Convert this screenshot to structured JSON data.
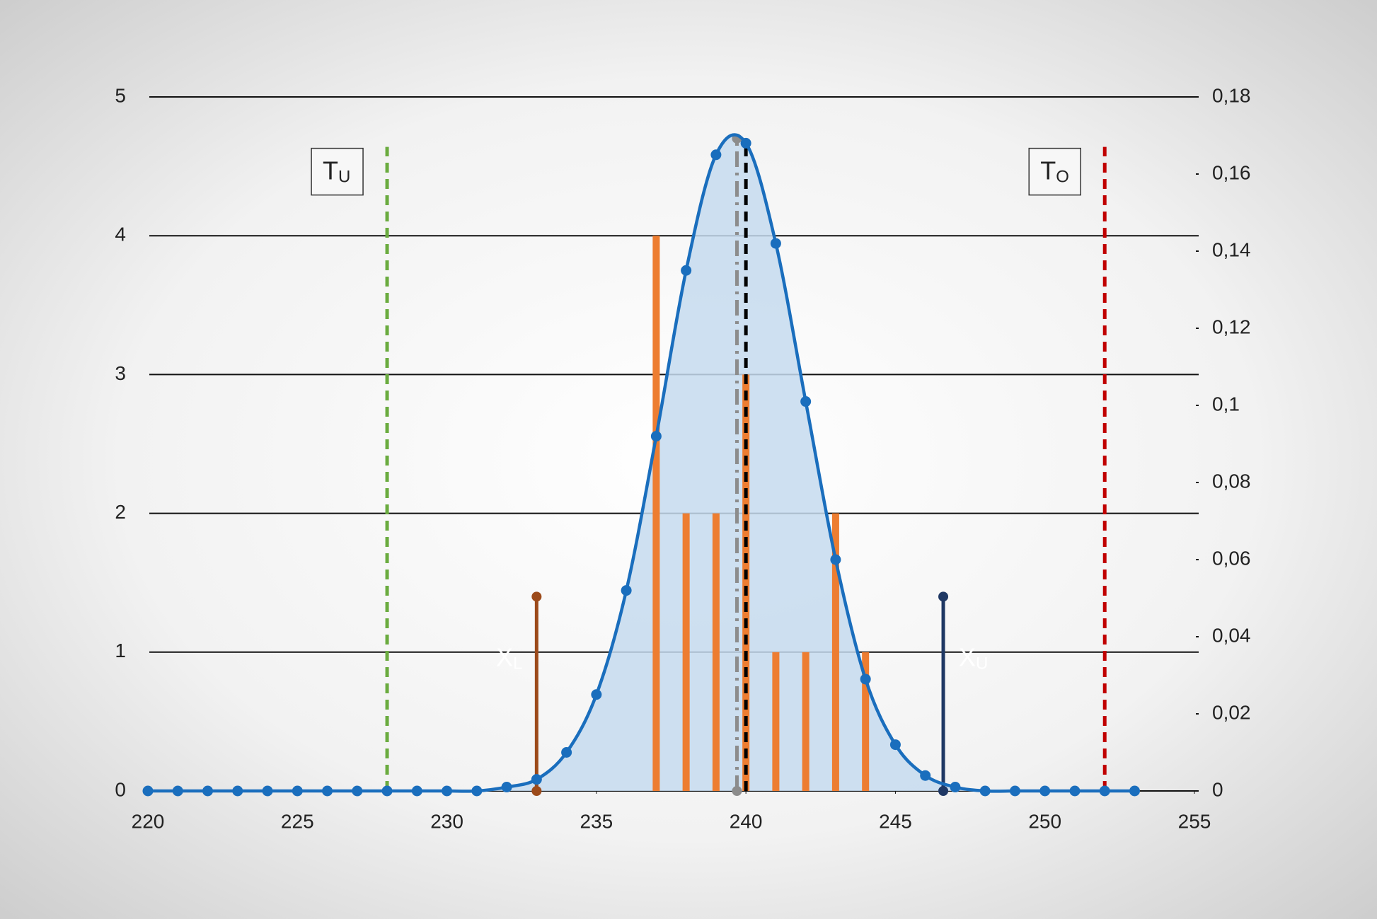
{
  "chart_data": {
    "type": "bar",
    "xlim": [
      220,
      255
    ],
    "xticks": [
      220,
      225,
      230,
      235,
      240,
      245,
      250,
      255
    ],
    "ylim": [
      0,
      5
    ],
    "yticks": [
      0,
      1,
      2,
      3,
      4,
      5
    ],
    "y2lim": [
      0,
      0.18
    ],
    "y2ticks": [
      0,
      {
        "value": 0.02,
        "label": "0,02"
      },
      {
        "value": 0.04,
        "label": "0,04"
      },
      {
        "value": 0.06,
        "label": "0,06"
      },
      {
        "value": 0.08,
        "label": "0,08"
      },
      {
        "value": 0.1,
        "label": "0,1"
      },
      {
        "value": 0.12,
        "label": "0,12"
      },
      {
        "value": 0.14,
        "label": "0,14"
      },
      {
        "value": 0.16,
        "label": "0,16"
      },
      {
        "value": 0.18,
        "label": "0,18"
      }
    ],
    "grid": true,
    "series": [
      {
        "type": "bar",
        "color": "#ed7d31",
        "x": [
          237,
          238,
          239,
          240,
          241,
          242,
          243,
          244
        ],
        "values": [
          4,
          2,
          2,
          3,
          1,
          1,
          2,
          1
        ]
      },
      {
        "type": "line",
        "axis": "y2",
        "color": "#1a6ebd",
        "fill": "#c6dbef",
        "x": [
          220,
          221,
          222,
          223,
          224,
          225,
          226,
          227,
          228,
          229,
          230,
          231,
          232,
          233,
          234,
          235,
          236,
          237,
          238,
          239,
          240,
          241,
          242,
          243,
          244,
          245,
          246,
          247,
          248,
          249,
          250,
          251,
          252,
          253
        ],
        "values": [
          0,
          0,
          0,
          0,
          0,
          0,
          0,
          0,
          0,
          0,
          0,
          0,
          0.001,
          0.003,
          0.01,
          0.025,
          0.052,
          0.092,
          0.135,
          0.165,
          0.168,
          0.142,
          0.101,
          0.06,
          0.029,
          0.012,
          0.004,
          0.001,
          0,
          0,
          0,
          0,
          0,
          0
        ]
      }
    ],
    "lines": [
      {
        "x": 228,
        "top": 4.64,
        "color": "#6aab3f",
        "dash": "dashed",
        "label": "T",
        "sub": "U"
      },
      {
        "x": 252,
        "top": 4.64,
        "color": "#c00000",
        "dash": "dashed",
        "label": "T",
        "sub": "O"
      },
      {
        "x": 233,
        "top": 1.4,
        "color": "#9c4a1a",
        "dash": "solid",
        "label": "X",
        "sub": "L"
      },
      {
        "x": 246.6,
        "top": 1.4,
        "color": "#1f3864",
        "dash": "solid",
        "label": "X",
        "sub": "U"
      },
      {
        "x": 239.7,
        "top": 4.7,
        "color": "#8c8c8c",
        "dash": "dashdot"
      },
      {
        "x": 240,
        "top": 4.65,
        "color": "#000000",
        "dash": "dashed"
      }
    ]
  }
}
